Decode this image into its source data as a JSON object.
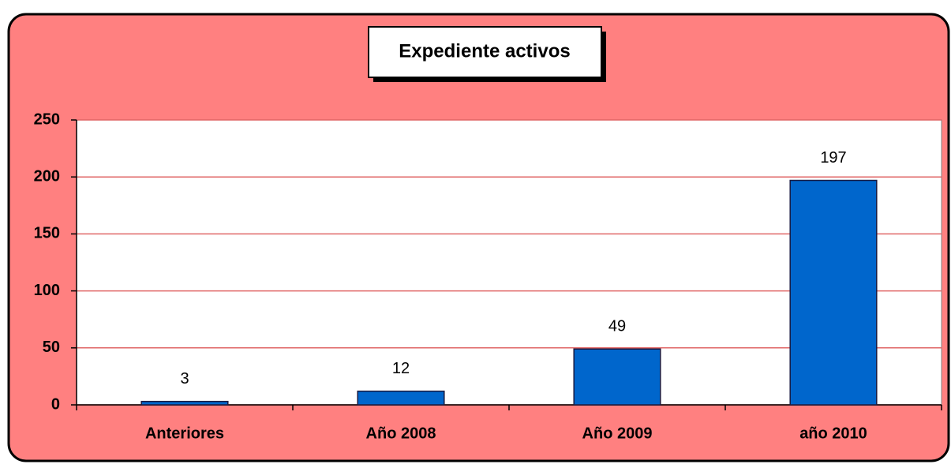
{
  "chart_data": {
    "type": "bar",
    "title": "Expediente activos",
    "categories": [
      "Anteriores",
      "Año 2008",
      "Año 2009",
      "año 2010"
    ],
    "values": [
      3,
      12,
      49,
      197
    ],
    "color": "#0066CC",
    "ylim": [
      0,
      250
    ],
    "yticks": [
      0,
      50,
      100,
      150,
      200,
      250
    ],
    "grid": true
  }
}
